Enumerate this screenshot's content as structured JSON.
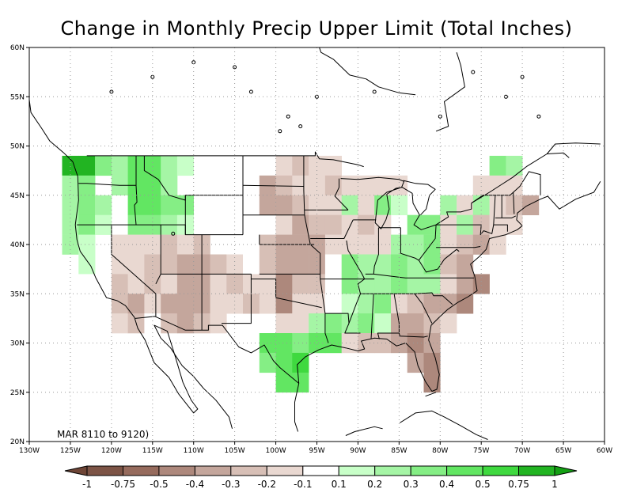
{
  "title": "Change in Monthly Precip Upper Limit (Total Inches)",
  "period_label": "MAR 8110 to 9120)",
  "map": {
    "lon_range": [
      -130,
      -60
    ],
    "lat_range": [
      20,
      60
    ],
    "lon_ticks": [
      "130W",
      "125W",
      "120W",
      "115W",
      "110W",
      "105W",
      "100W",
      "95W",
      "90W",
      "85W",
      "80W",
      "75W",
      "70W",
      "65W",
      "60W"
    ],
    "lat_ticks": [
      "20N",
      "25N",
      "30N",
      "35N",
      "40N",
      "45N",
      "50N",
      "55N",
      "60N"
    ],
    "grid": true
  },
  "legend": {
    "labels": [
      "-1",
      "-0.75",
      "-0.5",
      "-0.4",
      "-0.3",
      "-0.2",
      "-0.1",
      "0.1",
      "0.2",
      "0.3",
      "0.4",
      "0.5",
      "0.75",
      "1"
    ],
    "colors": [
      "#7d5446",
      "#966b5d",
      "#ad887c",
      "#c4a69c",
      "#d7bfb6",
      "#e9d8d1",
      "#ffffff",
      "#c8ffc8",
      "#a5f5a5",
      "#85ee85",
      "#62e662",
      "#3fd93f",
      "#22b422"
    ],
    "end_left": "#6e4536",
    "end_right": "#14a014"
  },
  "grid_data": {
    "cell_deg": 2,
    "cells": [
      [
        -125,
        48,
        12
      ],
      [
        -125,
        46,
        8
      ],
      [
        -125,
        44,
        8
      ],
      [
        -125,
        42,
        8
      ],
      [
        -125,
        40,
        8
      ],
      [
        -123,
        48,
        12
      ],
      [
        -123,
        46,
        9
      ],
      [
        -123,
        44,
        9
      ],
      [
        -123,
        42,
        9
      ],
      [
        -123,
        40,
        7
      ],
      [
        -123,
        38,
        7
      ],
      [
        -123,
        36,
        6
      ],
      [
        -121,
        48,
        9
      ],
      [
        -121,
        44,
        8
      ],
      [
        -121,
        42,
        7
      ],
      [
        -119,
        48,
        8
      ],
      [
        -119,
        46,
        8
      ],
      [
        -119,
        40,
        5
      ],
      [
        -119,
        38,
        5
      ],
      [
        -119,
        36,
        4
      ],
      [
        -119,
        34,
        4
      ],
      [
        -119,
        32,
        5
      ],
      [
        -117,
        48,
        10
      ],
      [
        -117,
        46,
        10
      ],
      [
        -117,
        44,
        10
      ],
      [
        -117,
        42,
        9
      ],
      [
        -117,
        40,
        5
      ],
      [
        -117,
        38,
        5
      ],
      [
        -117,
        36,
        5
      ],
      [
        -117,
        34,
        3
      ],
      [
        -117,
        32,
        4
      ],
      [
        -115,
        48,
        10
      ],
      [
        -115,
        46,
        10
      ],
      [
        -115,
        44,
        10
      ],
      [
        -115,
        42,
        9
      ],
      [
        -115,
        40,
        5
      ],
      [
        -115,
        38,
        4
      ],
      [
        -115,
        36,
        4
      ],
      [
        -115,
        34,
        5
      ],
      [
        -115,
        32,
        6
      ],
      [
        -113,
        48,
        8
      ],
      [
        -113,
        46,
        8
      ],
      [
        -113,
        44,
        9
      ],
      [
        -113,
        42,
        8
      ],
      [
        -113,
        40,
        4
      ],
      [
        -113,
        38,
        4
      ],
      [
        -113,
        36,
        5
      ],
      [
        -113,
        34,
        3
      ],
      [
        -113,
        32,
        4
      ],
      [
        -111,
        48,
        7
      ],
      [
        -111,
        44,
        9
      ],
      [
        -111,
        42,
        7
      ],
      [
        -111,
        40,
        5
      ],
      [
        -111,
        38,
        3
      ],
      [
        -111,
        36,
        3
      ],
      [
        -111,
        34,
        3
      ],
      [
        -111,
        32,
        3
      ],
      [
        -109,
        40,
        4
      ],
      [
        -109,
        38,
        3
      ],
      [
        -109,
        36,
        3
      ],
      [
        -109,
        34,
        3
      ],
      [
        -109,
        32,
        4
      ],
      [
        -107,
        38,
        4
      ],
      [
        -107,
        36,
        5
      ],
      [
        -107,
        34,
        5
      ],
      [
        -107,
        32,
        5
      ],
      [
        -105,
        38,
        5
      ],
      [
        -105,
        36,
        4
      ],
      [
        -105,
        34,
        5
      ],
      [
        -103,
        38,
        6
      ],
      [
        -103,
        36,
        5
      ],
      [
        -103,
        34,
        4
      ],
      [
        -101,
        46,
        3
      ],
      [
        -101,
        44,
        3
      ],
      [
        -101,
        40,
        4
      ],
      [
        -101,
        38,
        4
      ],
      [
        -101,
        36,
        5
      ],
      [
        -101,
        34,
        5
      ],
      [
        -101,
        30,
        10
      ],
      [
        -101,
        28,
        9
      ],
      [
        -99,
        48,
        5
      ],
      [
        -99,
        46,
        4
      ],
      [
        -99,
        44,
        3
      ],
      [
        -99,
        42,
        5
      ],
      [
        -99,
        40,
        3
      ],
      [
        -99,
        38,
        3
      ],
      [
        -99,
        36,
        2
      ],
      [
        -99,
        34,
        2
      ],
      [
        -99,
        32,
        5
      ],
      [
        -99,
        30,
        10
      ],
      [
        -99,
        28,
        10
      ],
      [
        -99,
        26,
        10
      ],
      [
        -97,
        48,
        4
      ],
      [
        -97,
        46,
        5
      ],
      [
        -97,
        44,
        4
      ],
      [
        -97,
        42,
        3
      ],
      [
        -97,
        40,
        3
      ],
      [
        -97,
        38,
        3
      ],
      [
        -97,
        36,
        4
      ],
      [
        -97,
        34,
        5
      ],
      [
        -97,
        32,
        5
      ],
      [
        -97,
        30,
        9
      ],
      [
        -97,
        28,
        11
      ],
      [
        -97,
        26,
        10
      ],
      [
        -95,
        48,
        5
      ],
      [
        -95,
        46,
        5
      ],
      [
        -95,
        44,
        5
      ],
      [
        -95,
        42,
        4
      ],
      [
        -95,
        40,
        3
      ],
      [
        -95,
        38,
        3
      ],
      [
        -95,
        36,
        4
      ],
      [
        -95,
        34,
        5
      ],
      [
        -95,
        32,
        8
      ],
      [
        -95,
        30,
        10
      ],
      [
        -93,
        48,
        5
      ],
      [
        -93,
        46,
        4
      ],
      [
        -93,
        44,
        5
      ],
      [
        -93,
        42,
        4
      ],
      [
        -93,
        40,
        5
      ],
      [
        -93,
        38,
        6
      ],
      [
        -93,
        36,
        6
      ],
      [
        -93,
        34,
        6
      ],
      [
        -93,
        32,
        9
      ],
      [
        -93,
        30,
        10
      ],
      [
        -91,
        46,
        5
      ],
      [
        -91,
        44,
        8
      ],
      [
        -91,
        42,
        5
      ],
      [
        -91,
        40,
        5
      ],
      [
        -91,
        38,
        9
      ],
      [
        -91,
        36,
        9
      ],
      [
        -91,
        34,
        7
      ],
      [
        -91,
        32,
        8
      ],
      [
        -91,
        30,
        5
      ],
      [
        -89,
        46,
        5
      ],
      [
        -89,
        44,
        5
      ],
      [
        -89,
        42,
        4
      ],
      [
        -89,
        40,
        5
      ],
      [
        -89,
        38,
        8
      ],
      [
        -89,
        36,
        8
      ],
      [
        -89,
        34,
        8
      ],
      [
        -89,
        32,
        9
      ],
      [
        -89,
        30,
        4
      ],
      [
        -87,
        46,
        5
      ],
      [
        -87,
        44,
        9
      ],
      [
        -87,
        42,
        5
      ],
      [
        -87,
        40,
        5
      ],
      [
        -87,
        38,
        8
      ],
      [
        -87,
        36,
        8
      ],
      [
        -87,
        34,
        9
      ],
      [
        -87,
        32,
        7
      ],
      [
        -87,
        30,
        4
      ],
      [
        -85,
        46,
        5
      ],
      [
        -85,
        44,
        7
      ],
      [
        -85,
        40,
        8
      ],
      [
        -85,
        38,
        9
      ],
      [
        -85,
        36,
        9
      ],
      [
        -85,
        34,
        5
      ],
      [
        -85,
        32,
        3
      ],
      [
        -85,
        30,
        3
      ],
      [
        -83,
        42,
        9
      ],
      [
        -83,
        40,
        8
      ],
      [
        -83,
        38,
        8
      ],
      [
        -83,
        36,
        8
      ],
      [
        -83,
        34,
        4
      ],
      [
        -83,
        32,
        3
      ],
      [
        -83,
        30,
        2
      ],
      [
        -83,
        28,
        3
      ],
      [
        -81,
        42,
        9
      ],
      [
        -81,
        40,
        9
      ],
      [
        -81,
        38,
        9
      ],
      [
        -81,
        36,
        8
      ],
      [
        -81,
        34,
        3
      ],
      [
        -81,
        32,
        4
      ],
      [
        -81,
        30,
        3
      ],
      [
        -81,
        28,
        2
      ],
      [
        -81,
        26,
        2
      ],
      [
        -79,
        44,
        8
      ],
      [
        -79,
        42,
        5
      ],
      [
        -79,
        40,
        5
      ],
      [
        -79,
        38,
        4
      ],
      [
        -79,
        36,
        5
      ],
      [
        -79,
        34,
        3
      ],
      [
        -79,
        32,
        5
      ],
      [
        -77,
        44,
        5
      ],
      [
        -77,
        42,
        8
      ],
      [
        -77,
        40,
        4
      ],
      [
        -77,
        38,
        3
      ],
      [
        -77,
        36,
        3
      ],
      [
        -77,
        34,
        2
      ],
      [
        -75,
        46,
        5
      ],
      [
        -75,
        44,
        8
      ],
      [
        -75,
        42,
        4
      ],
      [
        -75,
        40,
        3
      ],
      [
        -75,
        36,
        2
      ],
      [
        -73,
        48,
        9
      ],
      [
        -73,
        46,
        5
      ],
      [
        -73,
        44,
        5
      ],
      [
        -73,
        42,
        5
      ],
      [
        -73,
        40,
        5
      ],
      [
        -71,
        48,
        8
      ],
      [
        -71,
        46,
        5
      ],
      [
        -71,
        44,
        4
      ],
      [
        -71,
        42,
        5
      ],
      [
        -69,
        44,
        3
      ]
    ]
  }
}
